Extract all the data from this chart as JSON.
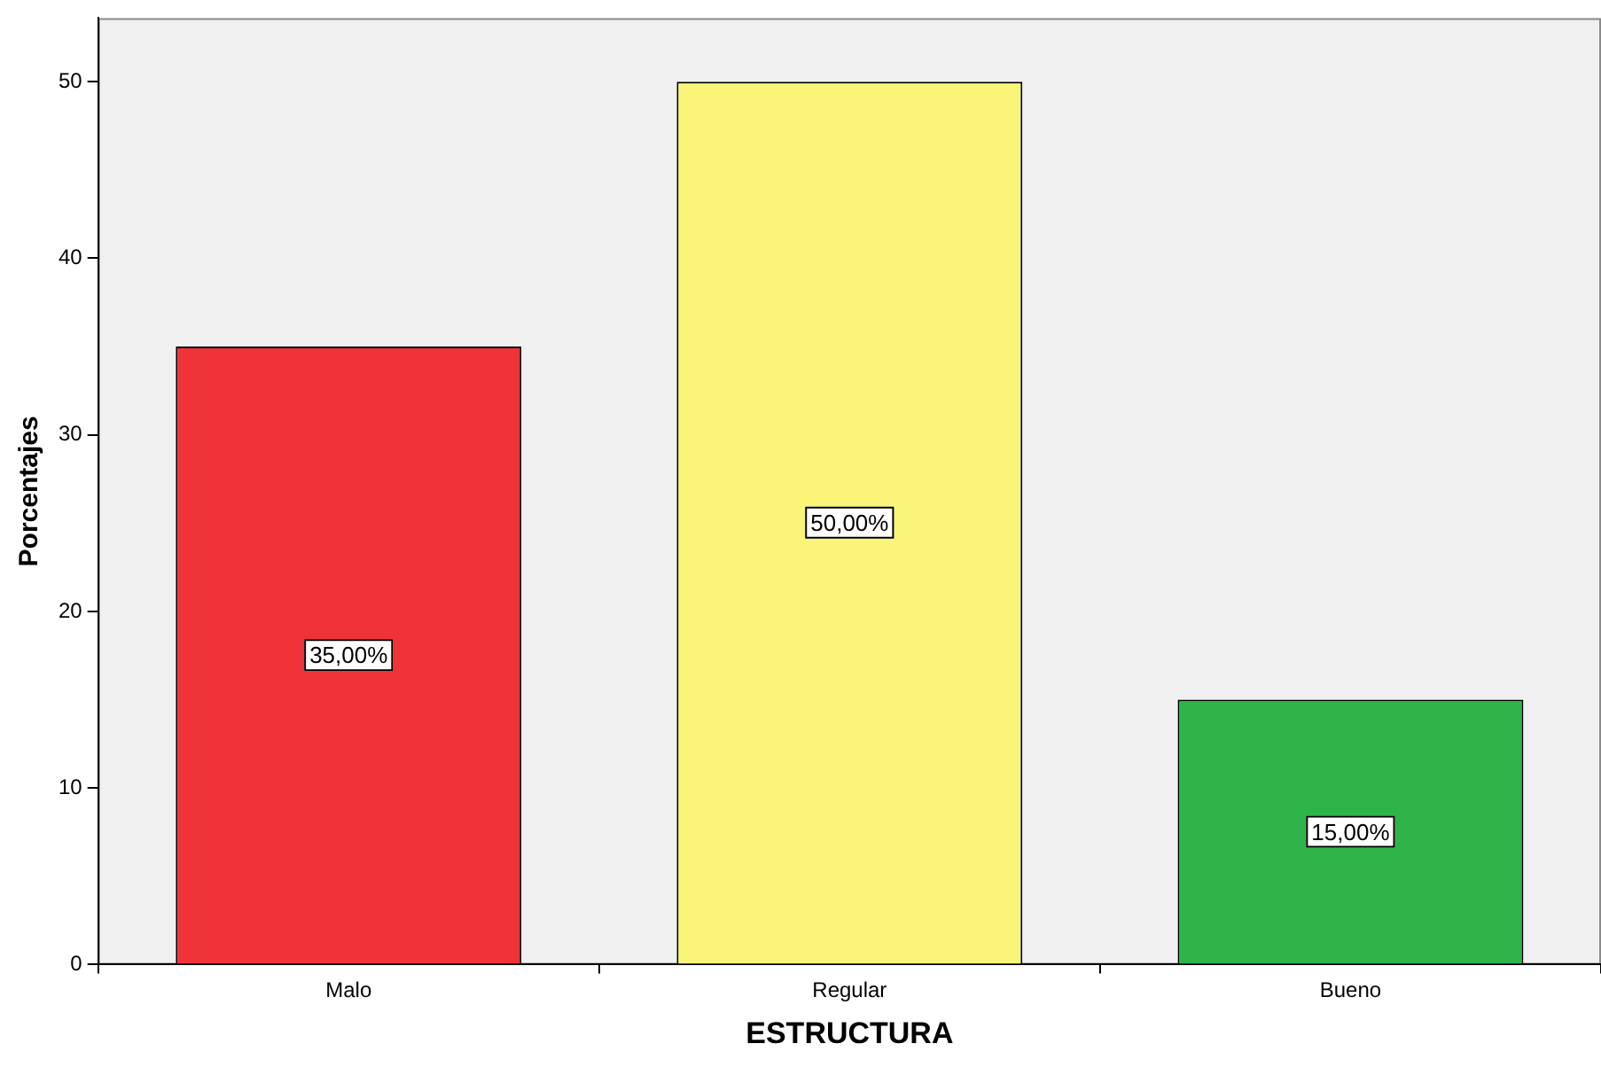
{
  "chart_data": {
    "type": "bar",
    "xlabel": "ESTRUCTURA",
    "ylabel": "Porcentajes",
    "categories": [
      "Malo",
      "Regular",
      "Bueno"
    ],
    "values": [
      35,
      50,
      15
    ],
    "colors": [
      "#ef3338",
      "#f8f578",
      "#2fb44a"
    ],
    "value_labels": [
      "35,00%",
      "50,00%",
      "15,00%"
    ],
    "ylim": [
      0,
      53.6
    ],
    "yticks": [
      0,
      10,
      20,
      30,
      40,
      50
    ]
  }
}
